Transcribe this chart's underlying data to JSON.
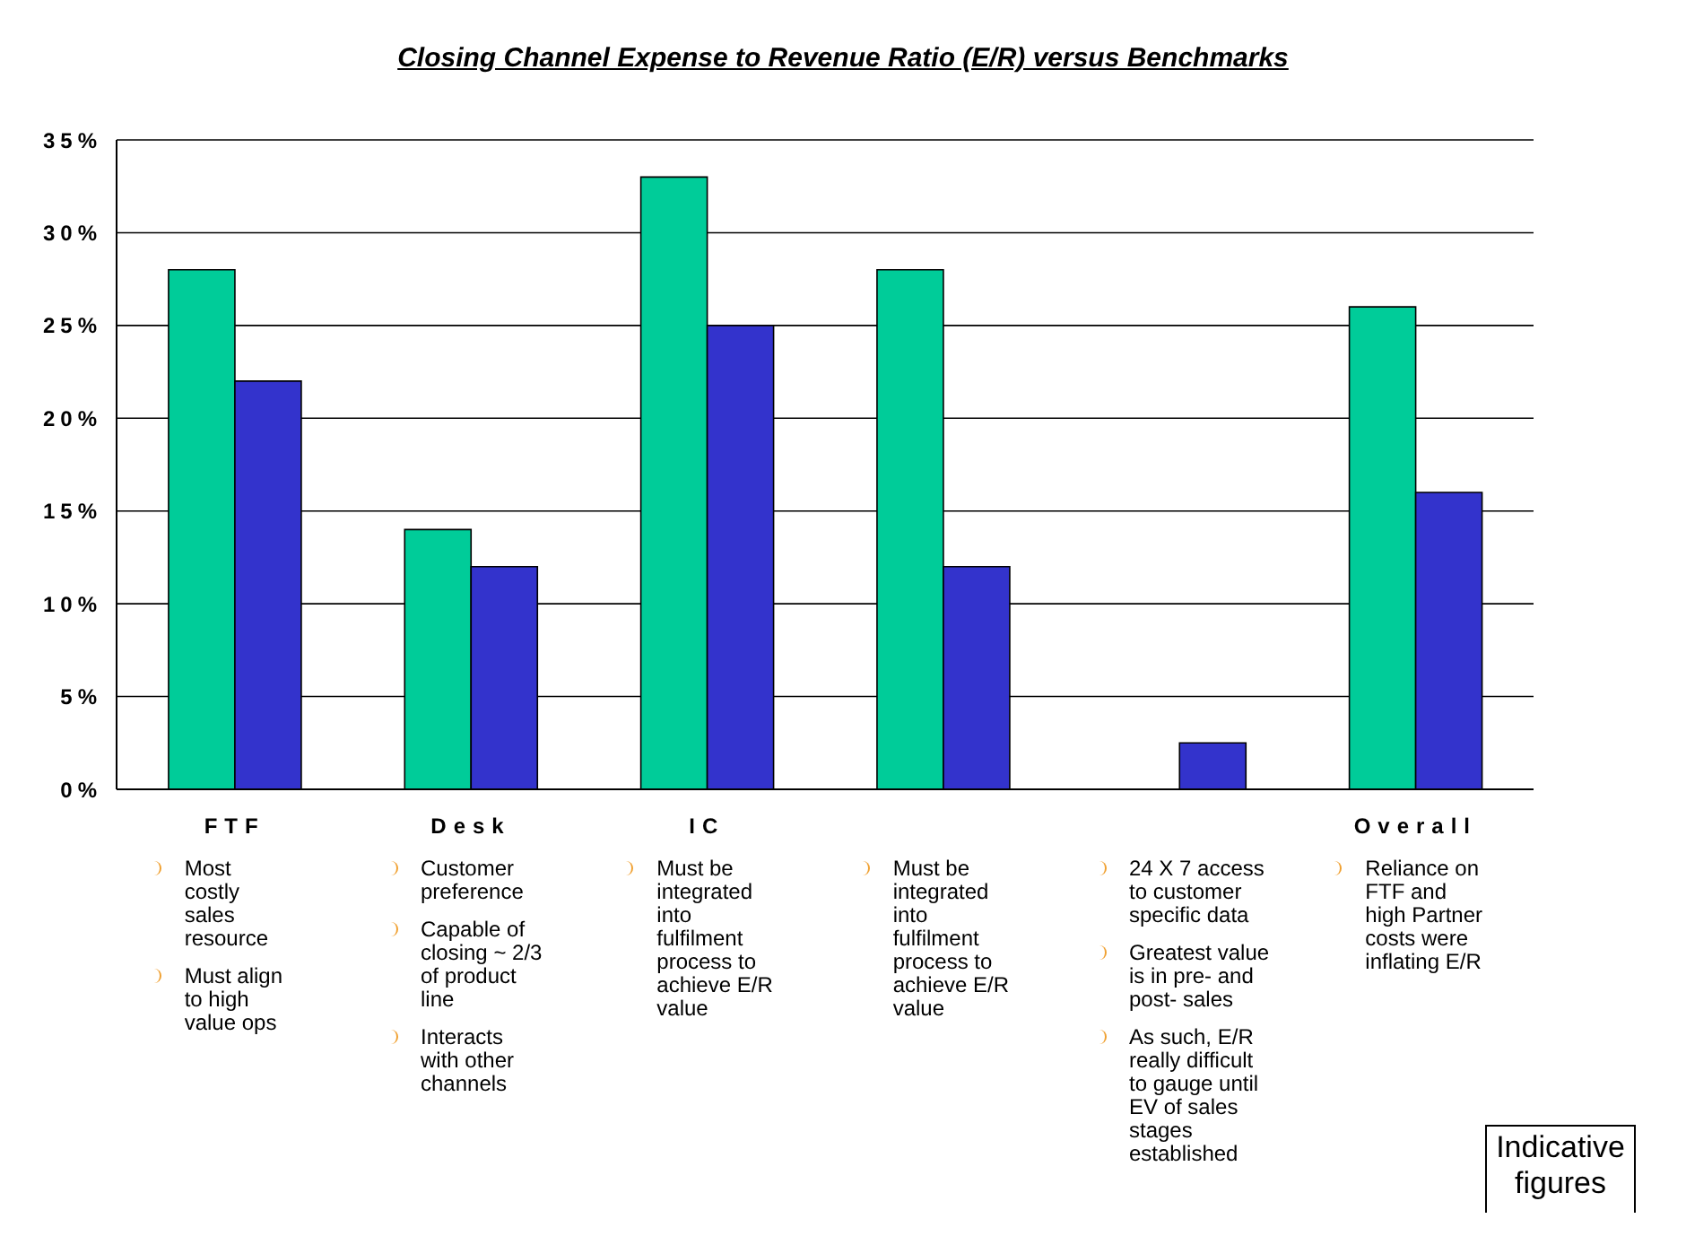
{
  "chart_data": {
    "type": "bar",
    "title": "Closing Channel Expense to Revenue Ratio (E/R) versus Benchmarks",
    "categories": [
      "FTF",
      "Desk",
      "IC",
      null,
      null,
      "Overall"
    ],
    "series": [
      {
        "color": "#00cc99",
        "values": [
          28,
          14,
          33,
          28,
          null,
          26
        ]
      },
      {
        "color": "#3333cc",
        "values": [
          22,
          12,
          25,
          12,
          2.5,
          16
        ]
      }
    ],
    "ylim": [
      0,
      35
    ],
    "yticks": [
      {
        "value": 0,
        "label": "0%"
      },
      {
        "value": 5,
        "label": "5%"
      },
      {
        "value": 10,
        "label": "10%"
      },
      {
        "value": 15,
        "label": "15%"
      },
      {
        "value": 20,
        "label": "20%"
      },
      {
        "value": 25,
        "label": "25%"
      },
      {
        "value": 30,
        "label": "30%"
      },
      {
        "value": 35,
        "label": "35%"
      }
    ],
    "grid": "y",
    "legend": false,
    "annotations": [
      "Most costly sales resource",
      "Must align to high value ops",
      "Customer preference",
      "Capable of closing ~ 2/3 of product line",
      "Interacts with other channels",
      "Must be integrated into fulfilment process to achieve E/R value",
      "Must be integrated into fulfilment process to achieve E/R value",
      "24 X 7 access to customer specific data",
      "Greatest value is in pre- and post- sales",
      "As such, E/R really difficult to gauge until EV of sales stages established",
      "Reliance on FTF and high Partner costs were inflating E/R",
      "Indicative figures"
    ]
  }
}
